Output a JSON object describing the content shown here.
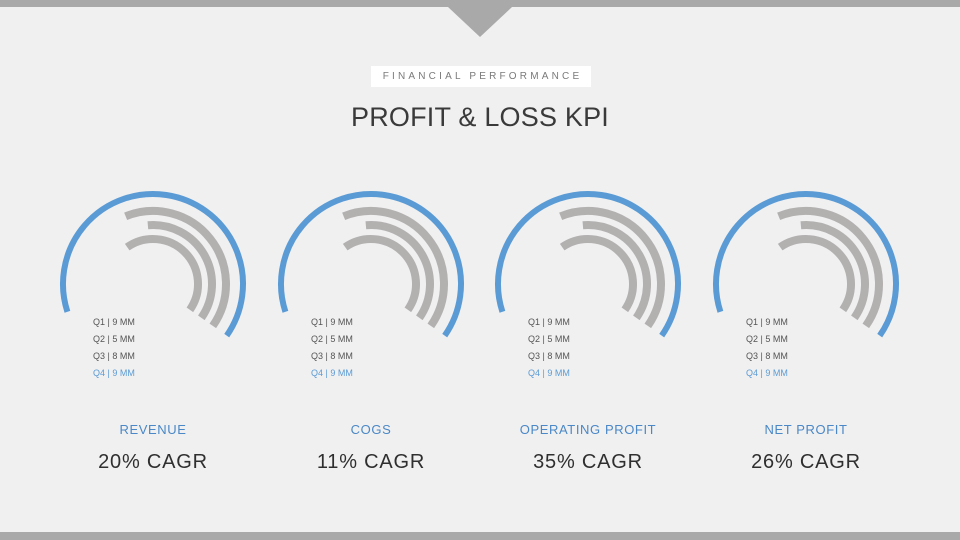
{
  "header": {
    "section_label": "FINANCIAL PERFORMANCE",
    "title": "PROFIT & LOSS KPI"
  },
  "colors": {
    "accent": "#5b9bd5",
    "ring_gray": "#b3b0b0",
    "bars": "#a9a9a9"
  },
  "chart_data": [
    {
      "type": "radial-bar",
      "title": "REVENUE",
      "value_label": "20% CAGR",
      "legend": [
        "Q1 | 9 MM",
        "Q2 | 5 MM",
        "Q3 | 8 MM",
        "Q4 | 9 MM"
      ],
      "categories": [
        "Q1",
        "Q2",
        "Q3",
        "Q4"
      ],
      "values": [
        9,
        5,
        8,
        9
      ],
      "unit": "MM"
    },
    {
      "type": "radial-bar",
      "title": "COGS",
      "value_label": "11% CAGR",
      "legend": [
        "Q1 | 9 MM",
        "Q2 | 5 MM",
        "Q3 | 8 MM",
        "Q4 | 9 MM"
      ],
      "categories": [
        "Q1",
        "Q2",
        "Q3",
        "Q4"
      ],
      "values": [
        9,
        5,
        8,
        9
      ],
      "unit": "MM"
    },
    {
      "type": "radial-bar",
      "title": "OPERATING PROFIT",
      "value_label": "35% CAGR",
      "legend": [
        "Q1 | 9 MM",
        "Q2 | 5 MM",
        "Q3 | 8 MM",
        "Q4 | 9 MM"
      ],
      "categories": [
        "Q1",
        "Q2",
        "Q3",
        "Q4"
      ],
      "values": [
        9,
        5,
        8,
        9
      ],
      "unit": "MM"
    },
    {
      "type": "radial-bar",
      "title": "NET PROFIT",
      "value_label": "26% CAGR",
      "legend": [
        "Q1 | 9 MM",
        "Q2 | 5 MM",
        "Q3 | 8 MM",
        "Q4 | 9 MM"
      ],
      "categories": [
        "Q1",
        "Q2",
        "Q3",
        "Q4"
      ],
      "values": [
        9,
        5,
        8,
        9
      ],
      "unit": "MM"
    }
  ]
}
